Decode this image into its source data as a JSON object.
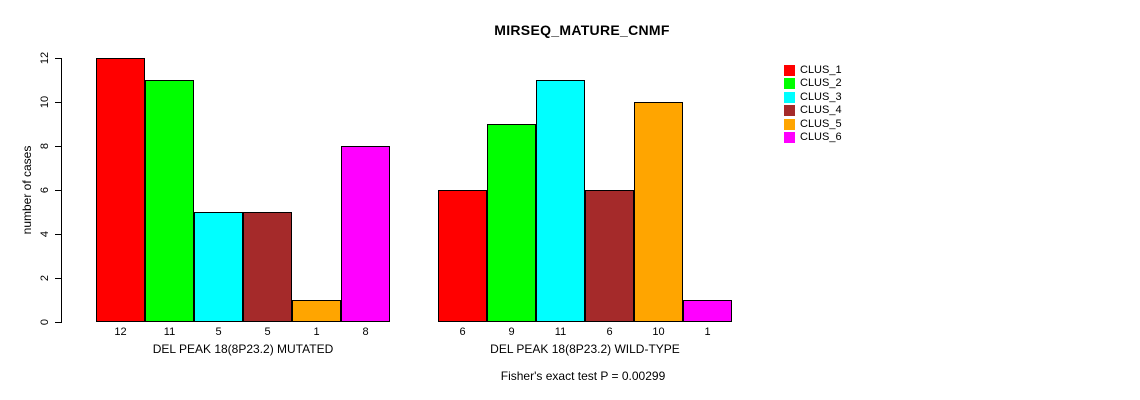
{
  "chart_data": {
    "type": "bar",
    "title": "MIRSEQ_MATURE_CNMF",
    "ylabel": "number of cases",
    "xlabel": "",
    "ylim": [
      0,
      12
    ],
    "yticks": [
      0,
      2,
      4,
      6,
      8,
      10,
      12
    ],
    "grid": false,
    "legend_position": "right",
    "categories": [
      "DEL PEAK 18(8P23.2) MUTATED",
      "DEL PEAK 18(8P23.2) WILD-TYPE"
    ],
    "series": [
      {
        "name": "CLUS_1",
        "color": "#FF0000",
        "values": [
          12,
          6
        ]
      },
      {
        "name": "CLUS_2",
        "color": "#00FF00",
        "values": [
          11,
          9
        ]
      },
      {
        "name": "CLUS_3",
        "color": "#00FFFF",
        "values": [
          5,
          11
        ]
      },
      {
        "name": "CLUS_4",
        "color": "#A52A2A",
        "values": [
          5,
          6
        ]
      },
      {
        "name": "CLUS_5",
        "color": "#FFA500",
        "values": [
          1,
          10
        ]
      },
      {
        "name": "CLUS_6",
        "color": "#FF00FF",
        "values": [
          8,
          1
        ]
      }
    ],
    "bar_value_labels": [
      [
        12,
        11,
        5,
        5,
        1,
        8
      ],
      [
        6,
        9,
        11,
        6,
        10,
        1
      ]
    ],
    "annotation": "Fisher's exact test P = 0.00299"
  },
  "colors": {
    "axis": "#000000",
    "background": "#FFFFFF"
  }
}
